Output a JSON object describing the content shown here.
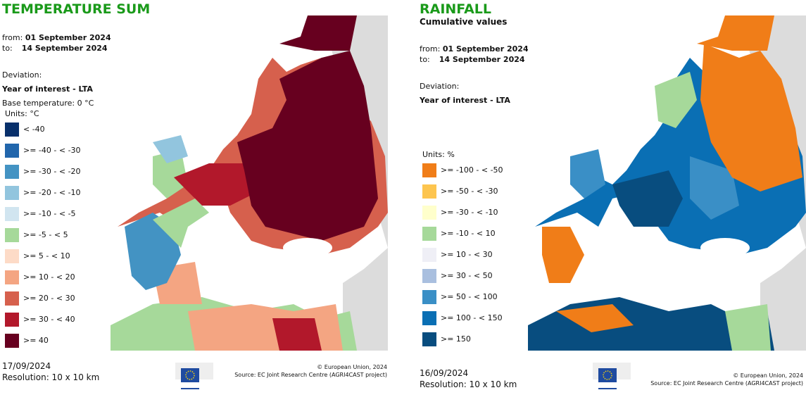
{
  "left": {
    "title": "TEMPERATURE SUM",
    "from_label": "from:",
    "from_date": "01 September 2024",
    "to_label": "to:",
    "to_date": "14 September 2024",
    "deviation_label": "Deviation:",
    "deviation_type": "Year of interest - LTA",
    "base_temperature": "Base temperature: 0 °C",
    "units": "Units: °C",
    "legend": [
      {
        "label": "< -40",
        "color": "#08306b"
      },
      {
        "label": ">= -40 - < -30",
        "color": "#2166ac"
      },
      {
        "label": ">= -30 - < -20",
        "color": "#4393c3"
      },
      {
        "label": ">= -20 - < -10",
        "color": "#92c5de"
      },
      {
        "label": ">= -10 - < -5",
        "color": "#d1e5f0"
      },
      {
        "label": ">= -5 - < 5",
        "color": "#a6d99a"
      },
      {
        "label": ">= 5 - < 10",
        "color": "#fddbc7"
      },
      {
        "label": ">= 10 - < 20",
        "color": "#f4a582"
      },
      {
        "label": ">= 20 - < 30",
        "color": "#d6604d"
      },
      {
        "label": ">= 30 - < 40",
        "color": "#b2182b"
      },
      {
        "label": ">= 40",
        "color": "#67001f"
      }
    ],
    "date": "17/09/2024",
    "resolution": "Resolution: 10 x 10 km",
    "copyright": "© European Union, 2024",
    "source": "Source: EC Joint Research Centre (AGRI4CAST project)",
    "logo_text": "European Commission"
  },
  "right": {
    "title": "RAINFALL",
    "subtitle": "Cumulative values",
    "from_label": "from:",
    "from_date": "01 September 2024",
    "to_label": "to:",
    "to_date": "14 September 2024",
    "deviation_label": "Deviation:",
    "deviation_type": "Year of interest - LTA",
    "units": "Units: %",
    "legend": [
      {
        "label": ">= -100 - < -50",
        "color": "#f07d18"
      },
      {
        "label": ">= -50 - < -30",
        "color": "#fdc54f"
      },
      {
        "label": ">= -30 - < -10",
        "color": "#ffffcc"
      },
      {
        "label": ">= -10 - < 10",
        "color": "#a6d99a"
      },
      {
        "label": ">= 10 - < 30",
        "color": "#efeff6"
      },
      {
        "label": ">= 30 - < 50",
        "color": "#a9bfdf"
      },
      {
        "label": ">= 50 - < 100",
        "color": "#3a8fc6"
      },
      {
        "label": ">= 100 - < 150",
        "color": "#0a6fb4"
      },
      {
        "label": ">= 150",
        "color": "#084d7f"
      }
    ],
    "date": "16/09/2024",
    "resolution": "Resolution: 10 x 10 km",
    "copyright": "© European Union, 2024",
    "source": "Source: EC Joint Research Centre (AGRI4CAST project)",
    "logo_text": "European Commission"
  }
}
